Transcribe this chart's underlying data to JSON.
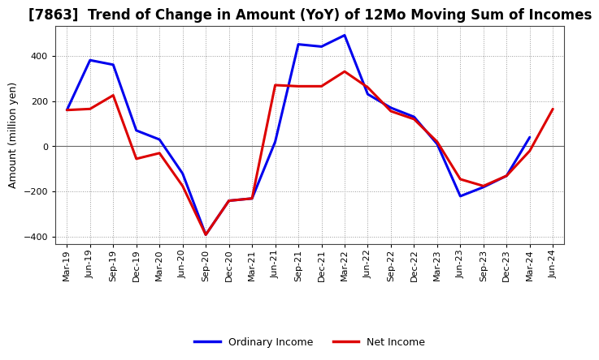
{
  "title": "[7863]  Trend of Change in Amount (YoY) of 12Mo Moving Sum of Incomes",
  "ylabel": "Amount (million yen)",
  "xlabels": [
    "Mar-19",
    "Jun-19",
    "Sep-19",
    "Dec-19",
    "Mar-20",
    "Jun-20",
    "Sep-20",
    "Dec-20",
    "Mar-21",
    "Jun-21",
    "Sep-21",
    "Dec-21",
    "Mar-22",
    "Jun-22",
    "Sep-22",
    "Dec-22",
    "Mar-23",
    "Jun-23",
    "Sep-23",
    "Dec-23",
    "Mar-24",
    "Jun-24"
  ],
  "ordinary_income": [
    160,
    380,
    360,
    70,
    30,
    -120,
    -390,
    -240,
    -230,
    20,
    450,
    440,
    490,
    230,
    170,
    130,
    10,
    -220,
    -180,
    -130,
    40,
    null
  ],
  "net_income": [
    160,
    165,
    225,
    -55,
    -30,
    -175,
    -390,
    -240,
    -230,
    270,
    265,
    265,
    330,
    260,
    155,
    120,
    20,
    -145,
    -175,
    -130,
    -20,
    165
  ],
  "ylim": [
    -430,
    530
  ],
  "yticks": [
    -400,
    -200,
    0,
    200,
    400
  ],
  "ordinary_color": "#0000ee",
  "net_color": "#dd0000",
  "line_width": 2.2,
  "background_color": "#ffffff",
  "grid_color": "#999999",
  "title_fontsize": 12,
  "tick_fontsize": 8,
  "ylabel_fontsize": 9
}
